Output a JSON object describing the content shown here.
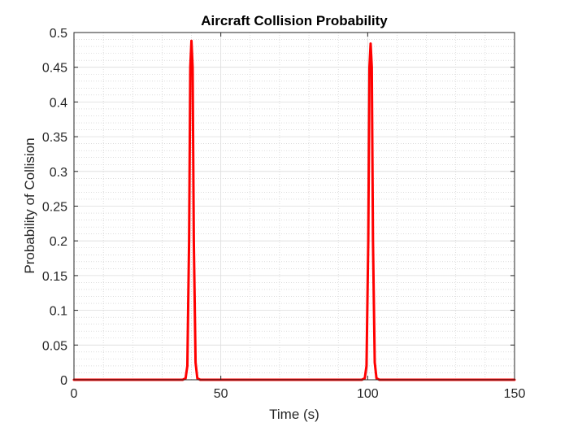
{
  "chart_data": {
    "type": "line",
    "title": "Aircraft Collision Probability",
    "xlabel": "Time (s)",
    "ylabel": "Probability of Collision",
    "xlim": [
      0,
      150
    ],
    "ylim": [
      0,
      0.5
    ],
    "xticks": [
      0,
      50,
      100,
      150
    ],
    "yticks": [
      0,
      0.05,
      0.1,
      0.15,
      0.2,
      0.25,
      0.3,
      0.35,
      0.4,
      0.45,
      0.5
    ],
    "grid": true,
    "minor_grid": true,
    "legend": "none",
    "series": [
      {
        "color": "#ff0000",
        "x": [
          0,
          37,
          38,
          38.6,
          39.2,
          39.6,
          40,
          40.4,
          40.8,
          41.4,
          42,
          43,
          98,
          99,
          99.6,
          100.2,
          100.6,
          101,
          101.4,
          101.8,
          102.4,
          103,
          104,
          150
        ],
        "y": [
          0,
          0,
          0.002,
          0.02,
          0.2,
          0.45,
          0.488,
          0.45,
          0.2,
          0.025,
          0.002,
          0,
          0,
          0.002,
          0.02,
          0.2,
          0.45,
          0.484,
          0.45,
          0.2,
          0.025,
          0.002,
          0,
          0
        ]
      }
    ]
  }
}
